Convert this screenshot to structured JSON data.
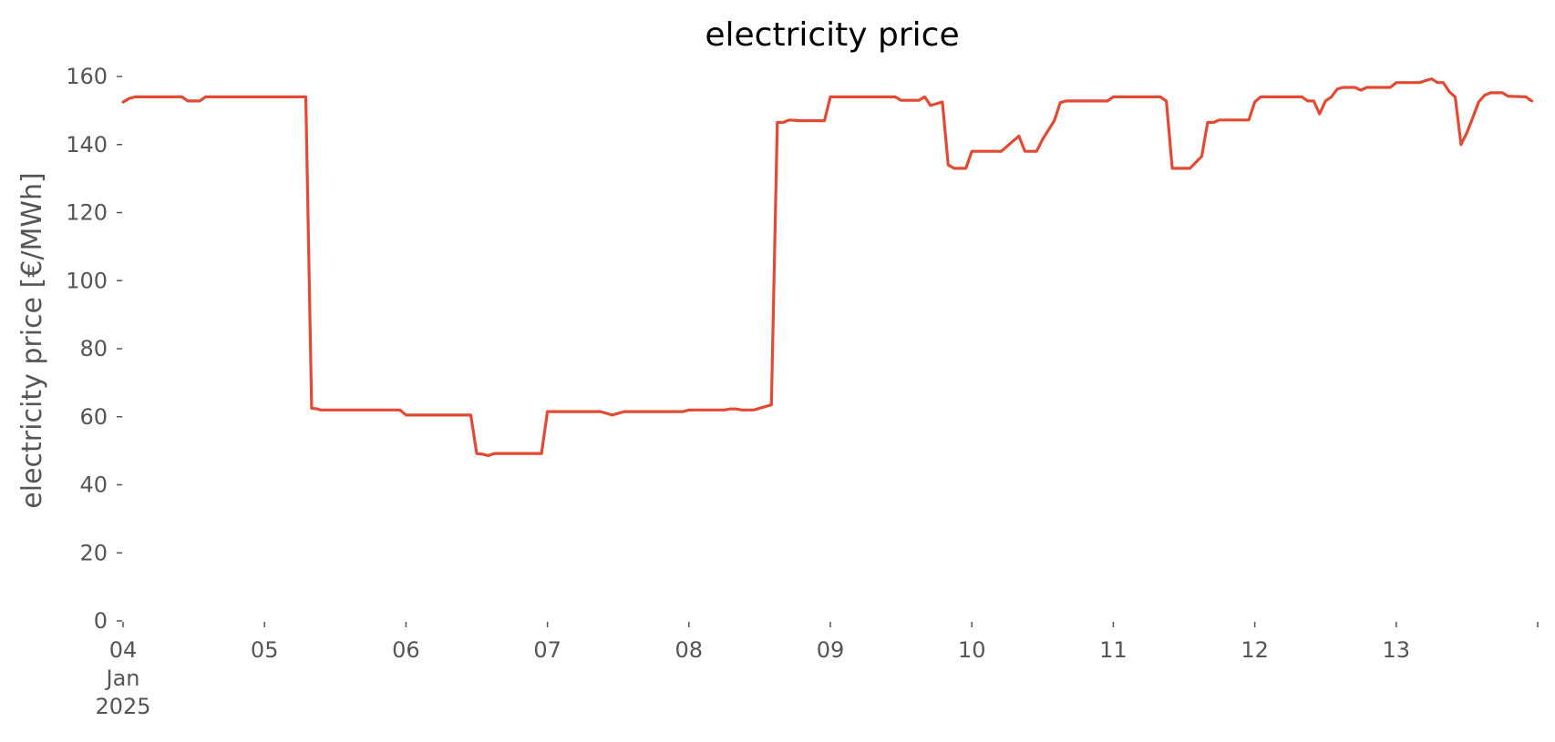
{
  "chart_data": {
    "type": "line",
    "title": "electricity price",
    "xlabel": "",
    "ylabel": "electricity price [€/MWh]",
    "x_axis_type": "date",
    "xlim": [
      "2025-01-04",
      "2025-01-14"
    ],
    "ylim": [
      0,
      160
    ],
    "grid": false,
    "legend": "none",
    "y_ticks": [
      0,
      20,
      40,
      60,
      80,
      100,
      120,
      140,
      160
    ],
    "x_ticks": [
      {
        "value": "2025-01-04",
        "lines": [
          "04",
          "Jan",
          "2025"
        ]
      },
      {
        "value": "2025-01-05",
        "lines": [
          "05"
        ]
      },
      {
        "value": "2025-01-06",
        "lines": [
          "06"
        ]
      },
      {
        "value": "2025-01-07",
        "lines": [
          "07"
        ]
      },
      {
        "value": "2025-01-08",
        "lines": [
          "08"
        ]
      },
      {
        "value": "2025-01-09",
        "lines": [
          "09"
        ]
      },
      {
        "value": "2025-01-10",
        "lines": [
          "10"
        ]
      },
      {
        "value": "2025-01-11",
        "lines": [
          "11"
        ]
      },
      {
        "value": "2025-01-12",
        "lines": [
          "12"
        ]
      },
      {
        "value": "2025-01-13",
        "lines": [
          "13"
        ]
      },
      {
        "value": "2025-01-14",
        "lines": [
          ""
        ]
      }
    ],
    "series": [
      {
        "color": "#e24a33",
        "points": [
          [
            "2025-01-04T00:00",
            152.5
          ],
          [
            "2025-01-04T01:00",
            153.5
          ],
          [
            "2025-01-04T02:00",
            154.0
          ],
          [
            "2025-01-04T10:00",
            154.0
          ],
          [
            "2025-01-04T11:00",
            152.8
          ],
          [
            "2025-01-04T13:00",
            152.8
          ],
          [
            "2025-01-04T14:00",
            154.0
          ],
          [
            "2025-01-05T07:00",
            154.0
          ],
          [
            "2025-01-05T08:00",
            62.5
          ],
          [
            "2025-01-05T09:00",
            62.3
          ],
          [
            "2025-01-05T09:30",
            62.0
          ],
          [
            "2025-01-05T23:00",
            62.0
          ],
          [
            "2025-01-06T00:00",
            60.5
          ],
          [
            "2025-01-06T11:00",
            60.5
          ],
          [
            "2025-01-06T12:00",
            49.2
          ],
          [
            "2025-01-06T13:00",
            49.0
          ],
          [
            "2025-01-06T14:00",
            48.6
          ],
          [
            "2025-01-06T15:00",
            49.2
          ],
          [
            "2025-01-06T23:00",
            49.2
          ],
          [
            "2025-01-07T00:00",
            61.5
          ],
          [
            "2025-01-07T09:00",
            61.5
          ],
          [
            "2025-01-07T10:00",
            61.0
          ],
          [
            "2025-01-07T11:00",
            60.5
          ],
          [
            "2025-01-07T12:00",
            61.0
          ],
          [
            "2025-01-07T13:00",
            61.5
          ],
          [
            "2025-01-07T23:00",
            61.5
          ],
          [
            "2025-01-08T00:00",
            62.0
          ],
          [
            "2025-01-08T06:00",
            62.0
          ],
          [
            "2025-01-08T07:00",
            62.3
          ],
          [
            "2025-01-08T08:00",
            62.3
          ],
          [
            "2025-01-08T09:00",
            62.0
          ],
          [
            "2025-01-08T11:00",
            62.0
          ],
          [
            "2025-01-08T13:00",
            63.0
          ],
          [
            "2025-01-08T14:00",
            63.5
          ],
          [
            "2025-01-08T15:00",
            146.5
          ],
          [
            "2025-01-08T16:00",
            146.5
          ],
          [
            "2025-01-08T17:00",
            147.2
          ],
          [
            "2025-01-08T19:00",
            147.0
          ],
          [
            "2025-01-08T23:00",
            147.0
          ],
          [
            "2025-01-09T00:00",
            154.0
          ],
          [
            "2025-01-09T11:00",
            154.0
          ],
          [
            "2025-01-09T12:00",
            153.0
          ],
          [
            "2025-01-09T15:00",
            153.0
          ],
          [
            "2025-01-09T16:00",
            154.0
          ],
          [
            "2025-01-09T17:00",
            151.5
          ],
          [
            "2025-01-09T18:00",
            152.0
          ],
          [
            "2025-01-09T19:00",
            152.5
          ],
          [
            "2025-01-09T20:00",
            134.0
          ],
          [
            "2025-01-09T21:00",
            133.0
          ],
          [
            "2025-01-09T23:00",
            133.0
          ],
          [
            "2025-01-10T00:00",
            138.0
          ],
          [
            "2025-01-10T05:00",
            138.0
          ],
          [
            "2025-01-10T06:00",
            139.5
          ],
          [
            "2025-01-10T08:00",
            142.5
          ],
          [
            "2025-01-10T09:00",
            138.0
          ],
          [
            "2025-01-10T11:00",
            138.0
          ],
          [
            "2025-01-10T12:00",
            141.5
          ],
          [
            "2025-01-10T14:00",
            147.0
          ],
          [
            "2025-01-10T15:00",
            152.3
          ],
          [
            "2025-01-10T16:00",
            152.8
          ],
          [
            "2025-01-10T23:00",
            152.8
          ],
          [
            "2025-01-11T00:00",
            154.0
          ],
          [
            "2025-01-11T08:00",
            154.0
          ],
          [
            "2025-01-11T09:00",
            152.8
          ],
          [
            "2025-01-11T10:00",
            133.0
          ],
          [
            "2025-01-11T13:00",
            133.0
          ],
          [
            "2025-01-11T15:00",
            136.5
          ],
          [
            "2025-01-11T16:00",
            146.5
          ],
          [
            "2025-01-11T17:00",
            146.5
          ],
          [
            "2025-01-11T18:00",
            147.2
          ],
          [
            "2025-01-11T23:00",
            147.2
          ],
          [
            "2025-01-12T00:00",
            152.5
          ],
          [
            "2025-01-12T01:00",
            154.0
          ],
          [
            "2025-01-12T08:00",
            154.0
          ],
          [
            "2025-01-12T09:00",
            152.8
          ],
          [
            "2025-01-12T10:00",
            152.8
          ],
          [
            "2025-01-12T11:00",
            149.0
          ],
          [
            "2025-01-12T12:00",
            152.8
          ],
          [
            "2025-01-12T13:00",
            154.0
          ],
          [
            "2025-01-12T14:00",
            156.3
          ],
          [
            "2025-01-12T15:00",
            156.8
          ],
          [
            "2025-01-12T17:00",
            156.8
          ],
          [
            "2025-01-12T18:00",
            156.0
          ],
          [
            "2025-01-12T19:00",
            156.8
          ],
          [
            "2025-01-12T23:00",
            156.8
          ],
          [
            "2025-01-13T00:00",
            158.2
          ],
          [
            "2025-01-13T04:00",
            158.2
          ],
          [
            "2025-01-13T05:00",
            158.8
          ],
          [
            "2025-01-13T06:00",
            159.3
          ],
          [
            "2025-01-13T07:00",
            158.2
          ],
          [
            "2025-01-13T08:00",
            158.2
          ],
          [
            "2025-01-13T09:00",
            155.5
          ],
          [
            "2025-01-13T10:00",
            154.0
          ],
          [
            "2025-01-13T11:00",
            140.0
          ],
          [
            "2025-01-13T12:00",
            143.5
          ],
          [
            "2025-01-13T13:00",
            148.0
          ],
          [
            "2025-01-13T14:00",
            152.5
          ],
          [
            "2025-01-13T15:00",
            154.5
          ],
          [
            "2025-01-13T16:00",
            155.2
          ],
          [
            "2025-01-13T18:00",
            155.2
          ],
          [
            "2025-01-13T19:00",
            154.2
          ],
          [
            "2025-01-13T22:00",
            154.0
          ],
          [
            "2025-01-13T23:00",
            152.8
          ]
        ]
      }
    ]
  }
}
